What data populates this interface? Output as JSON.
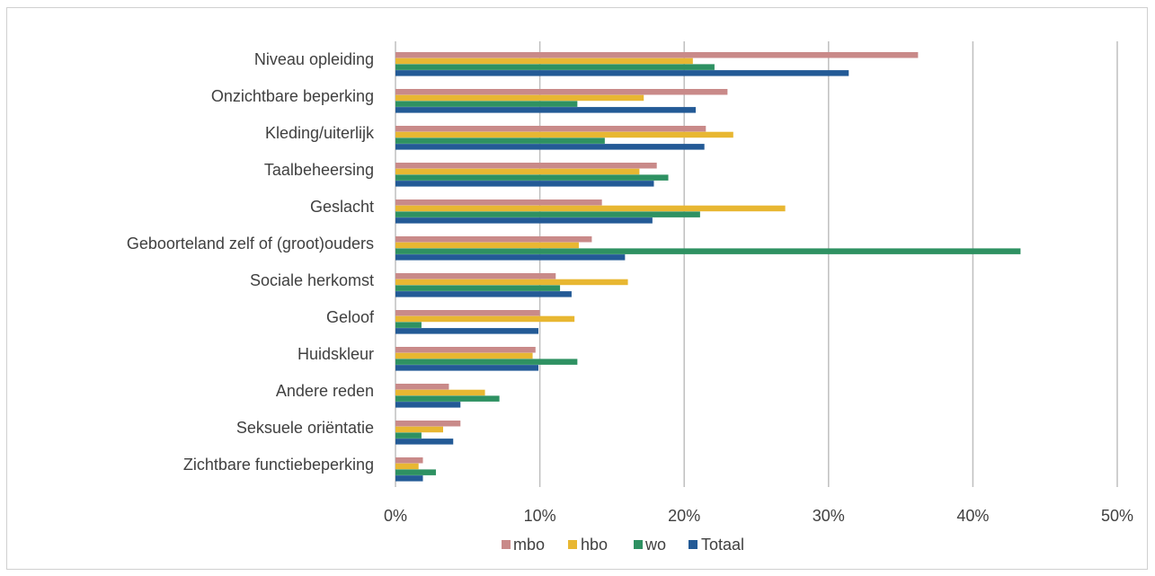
{
  "chart_data": {
    "type": "bar",
    "orientation": "horizontal",
    "categories": [
      "Niveau opleiding",
      "Onzichtbare beperking",
      "Kleding/uiterlijk",
      "Taalbeheersing",
      "Geslacht",
      "Geboorteland zelf of (groot)ouders",
      "Sociale herkomst",
      "Geloof",
      "Huidskleur",
      "Andere reden",
      "Seksuele oriëntatie",
      "Zichtbare functiebeperking"
    ],
    "series": [
      {
        "name": "mbo",
        "color": "#C98A89",
        "values": [
          36.2,
          23.0,
          21.5,
          18.1,
          14.3,
          13.6,
          11.1,
          10.0,
          9.7,
          3.7,
          4.5,
          1.9
        ]
      },
      {
        "name": "hbo",
        "color": "#E8B732",
        "values": [
          20.6,
          17.2,
          23.4,
          16.9,
          27.0,
          12.7,
          16.1,
          12.4,
          9.5,
          6.2,
          3.3,
          1.6
        ]
      },
      {
        "name": "wo",
        "color": "#2E9162",
        "values": [
          22.1,
          12.6,
          14.5,
          18.9,
          21.1,
          43.3,
          11.4,
          1.8,
          12.6,
          7.2,
          1.8,
          2.8
        ]
      },
      {
        "name": "Totaal",
        "color": "#235A96",
        "values": [
          31.4,
          20.8,
          21.4,
          17.9,
          17.8,
          15.9,
          12.2,
          9.9,
          9.9,
          4.5,
          4.0,
          1.9
        ]
      }
    ],
    "xticks": [
      "0%",
      "10%",
      "20%",
      "30%",
      "40%",
      "50%"
    ],
    "xlim": [
      0,
      50
    ],
    "grid": true,
    "legend_position": "bottom"
  }
}
